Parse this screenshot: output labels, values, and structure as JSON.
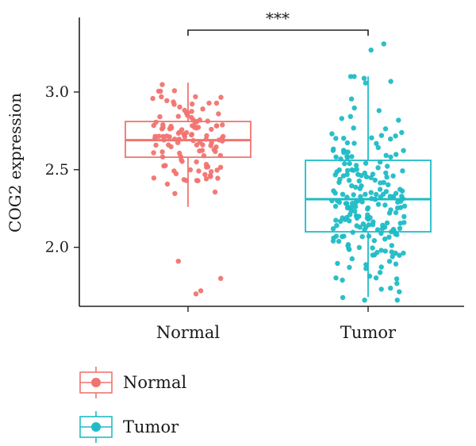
{
  "chart_data": {
    "type": "box",
    "ylabel": "COG2 expression",
    "xlabel": "",
    "categories": [
      "Normal",
      "Tumor"
    ],
    "ylim": [
      1.62,
      3.48
    ],
    "yticks": [
      2.0,
      2.5,
      3.0
    ],
    "ytick_labels": [
      "2.0",
      "2.5",
      "3.0"
    ],
    "significance": "***",
    "colors": {
      "Normal": "#f07470",
      "Tumor": "#1fbcc6"
    },
    "boxes": [
      {
        "name": "Normal",
        "whisker_low": 2.26,
        "q1": 2.58,
        "median": 2.69,
        "q3": 2.81,
        "whisker_high": 3.06,
        "outliers": [
          1.91,
          1.8,
          1.72,
          1.7
        ]
      },
      {
        "name": "Tumor",
        "whisker_low": 1.68,
        "q1": 2.1,
        "median": 2.31,
        "q3": 2.56,
        "whisker_high": 3.1,
        "outliers": [
          3.27,
          3.31
        ]
      }
    ],
    "points": {
      "Normal": {
        "n": 120,
        "sd": 0.17,
        "min": 2.2,
        "max": 3.06
      },
      "Tumor": {
        "n": 220,
        "sd": 0.3,
        "min": 1.66,
        "max": 3.1
      }
    },
    "legend": {
      "position": "bottom-left",
      "entries": [
        {
          "label": "Normal",
          "color": "#f07470"
        },
        {
          "label": "Tumor",
          "color": "#1fbcc6"
        }
      ]
    }
  }
}
